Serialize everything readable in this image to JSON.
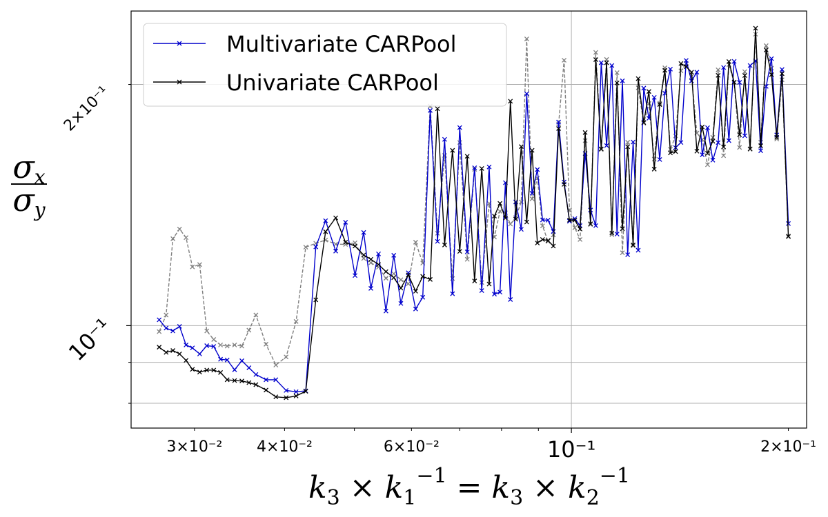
{
  "chart_data": {
    "type": "line",
    "x_scale": "log",
    "y_scale": "log",
    "xlim": [
      0.0245,
      0.212
    ],
    "ylim": [
      0.0745,
      0.247
    ],
    "grid": true,
    "legend_position": "top-left",
    "xlabel": "k₃ × k₁⁻¹ = k₃ × k₂⁻¹",
    "ylabel": "σx / σy",
    "x_major_ticks": [
      {
        "value": 0.03,
        "label": "3×10⁻²"
      },
      {
        "value": 0.04,
        "label": "4×10⁻²"
      },
      {
        "value": 0.06,
        "label": "6×10⁻²"
      },
      {
        "value": 0.1,
        "label": "10⁻¹"
      },
      {
        "value": 0.2,
        "label": "2×10⁻¹"
      }
    ],
    "y_major_ticks": [
      {
        "value": 0.1,
        "label": "10⁻¹"
      },
      {
        "value": 0.2,
        "label": "2×10⁻¹"
      }
    ],
    "x": [
      0.0268,
      0.0274,
      0.028,
      0.0286,
      0.0292,
      0.0298,
      0.0305,
      0.0312,
      0.0319,
      0.0326,
      0.0333,
      0.0341,
      0.0349,
      0.0357,
      0.0365,
      0.0377,
      0.0389,
      0.0402,
      0.0415,
      0.0428,
      0.0442,
      0.0456,
      0.0471,
      0.0486,
      0.0501,
      0.0515,
      0.0527,
      0.054,
      0.0553,
      0.0567,
      0.058,
      0.0594,
      0.0608,
      0.0622,
      0.0637,
      0.0652,
      0.0667,
      0.0684,
      0.07,
      0.0717,
      0.0734,
      0.0751,
      0.0769,
      0.0782,
      0.0796,
      0.081,
      0.0823,
      0.0837,
      0.0852,
      0.0867,
      0.0882,
      0.0897,
      0.0912,
      0.0928,
      0.0944,
      0.096,
      0.0977,
      0.0994,
      0.1011,
      0.1028,
      0.1045,
      0.1063,
      0.1081,
      0.11,
      0.1119,
      0.1138,
      0.1157,
      0.1177,
      0.1197,
      0.1218,
      0.1238,
      0.126,
      0.1281,
      0.1303,
      0.1326,
      0.1348,
      0.1372,
      0.1395,
      0.1419,
      0.1443,
      0.1468,
      0.1493,
      0.1519,
      0.1545,
      0.1571,
      0.1598,
      0.1626,
      0.1654,
      0.1682,
      0.1711,
      0.174,
      0.177,
      0.1801,
      0.1831,
      0.1863,
      0.1895,
      0.1927,
      0.196,
      0.2
    ],
    "series": [
      {
        "name": "Multivariate CARPool",
        "color": "#0000cc",
        "line_style": "solid",
        "y": [
          0.1017,
          0.0993,
          0.0985,
          0.0998,
          0.0946,
          0.0938,
          0.0922,
          0.0944,
          0.0942,
          0.0908,
          0.0906,
          0.0881,
          0.0904,
          0.0886,
          0.0869,
          0.0856,
          0.0856,
          0.083,
          0.0827,
          0.0829,
          0.1254,
          0.1352,
          0.1239,
          0.1346,
          0.1155,
          0.1307,
          0.1113,
          0.1229,
          0.1043,
          0.1224,
          0.1066,
          0.1164,
          0.1049,
          0.1085,
          0.1856,
          0.1274,
          0.1708,
          0.1096,
          0.1767,
          0.1236,
          0.1574,
          0.1106,
          0.1578,
          0.1095,
          0.1101,
          0.1508,
          0.1078,
          0.1427,
          0.1319,
          0.1947,
          0.1463,
          0.1566,
          0.1355,
          0.1354,
          0.1311,
          0.1795,
          0.1511,
          0.135,
          0.136,
          0.1333,
          0.164,
          0.1394,
          0.1333,
          0.2129,
          0.1678,
          0.2112,
          0.1301,
          0.2021,
          0.1226,
          0.1695,
          0.1242,
          0.1979,
          0.1815,
          0.1927,
          0.1612,
          0.195,
          0.209,
          0.1668,
          0.1693,
          0.2143,
          0.202,
          0.2072,
          0.1634,
          0.1766,
          0.1609,
          0.1692,
          0.21,
          0.1702,
          0.2137,
          0.2012,
          0.1726,
          0.2112,
          0.214,
          0.1653,
          0.1989,
          0.2154,
          0.173,
          0.2088,
          0.1341
        ]
      },
      {
        "name": "Univariate CARPool",
        "color": "#000000",
        "line_style": "solid",
        "y": [
          0.094,
          0.0926,
          0.0931,
          0.0922,
          0.0905,
          0.0882,
          0.0875,
          0.088,
          0.088,
          0.0874,
          0.0856,
          0.0854,
          0.0853,
          0.0849,
          0.0844,
          0.0831,
          0.0815,
          0.0813,
          0.0817,
          0.0828,
          0.1077,
          0.131,
          0.1363,
          0.1271,
          0.1257,
          0.1225,
          0.121,
          0.1192,
          0.1168,
          0.1148,
          0.1114,
          0.1157,
          0.1104,
          0.1152,
          0.1142,
          0.1865,
          0.1261,
          0.1655,
          0.1238,
          0.1627,
          0.1137,
          0.1571,
          0.1127,
          0.137,
          0.1421,
          0.1362,
          0.1906,
          0.1358,
          0.1673,
          0.1347,
          0.1655,
          0.1268,
          0.1281,
          0.1277,
          0.1257,
          0.1762,
          0.1501,
          0.1354,
          0.1354,
          0.132,
          0.1742,
          0.134,
          0.2148,
          0.1662,
          0.2129,
          0.1305,
          0.2009,
          0.1321,
          0.1672,
          0.1261,
          0.2034,
          0.1793,
          0.196,
          0.1568,
          0.1888,
          0.2083,
          0.1643,
          0.1649,
          0.2124,
          0.2105,
          0.2072,
          0.1651,
          0.177,
          0.1641,
          0.1699,
          0.2053,
          0.1671,
          0.2136,
          0.2013,
          0.1731,
          0.2052,
          0.1661,
          0.2351,
          0.1677,
          0.2208,
          0.2057,
          0.1718,
          0.2063,
          0.1293
        ]
      },
      {
        "name": "",
        "color": "#7f7f7f",
        "line_style": "dashed",
        "y": [
          0.0983,
          0.1031,
          0.1284,
          0.132,
          0.1288,
          0.1184,
          0.1192,
          0.0985,
          0.0961,
          0.0946,
          0.0943,
          0.0946,
          0.0943,
          0.0987,
          0.1031,
          0.0948,
          0.0893,
          0.0914,
          0.1012,
          0.1253,
          0.1267,
          0.1279,
          0.1264,
          0.1263,
          0.1269,
          0.1213,
          0.1198,
          0.1183,
          0.1146,
          0.1161,
          0.1141,
          0.1128,
          0.1271,
          0.1197,
          0.188,
          0.1304,
          0.1631,
          0.1145,
          0.1693,
          0.121,
          0.1567,
          0.1132,
          0.1421,
          0.129,
          0.1389,
          0.1383,
          0.1339,
          0.1364,
          0.1427,
          0.228,
          0.144,
          0.1528,
          0.1332,
          0.1274,
          0.1298,
          0.1785,
          0.2144,
          0.1394,
          0.1325,
          0.1281,
          0.1702,
          0.1337,
          0.2193,
          0.1659,
          0.2149,
          0.1299,
          0.2069,
          0.1233,
          0.1694,
          0.1258,
          0.1981,
          0.1789,
          0.1894,
          0.1614,
          0.1895,
          0.2098,
          0.166,
          0.1725,
          0.208,
          0.2124,
          0.2046,
          0.1739,
          0.1707,
          0.1588,
          0.1718,
          0.2086,
          0.163,
          0.2117,
          0.2011,
          0.1669,
          0.2075,
          0.1663,
          0.2311,
          0.1694,
          0.2236,
          0.2096,
          0.171,
          0.2027,
          0.1291
        ]
      }
    ]
  }
}
